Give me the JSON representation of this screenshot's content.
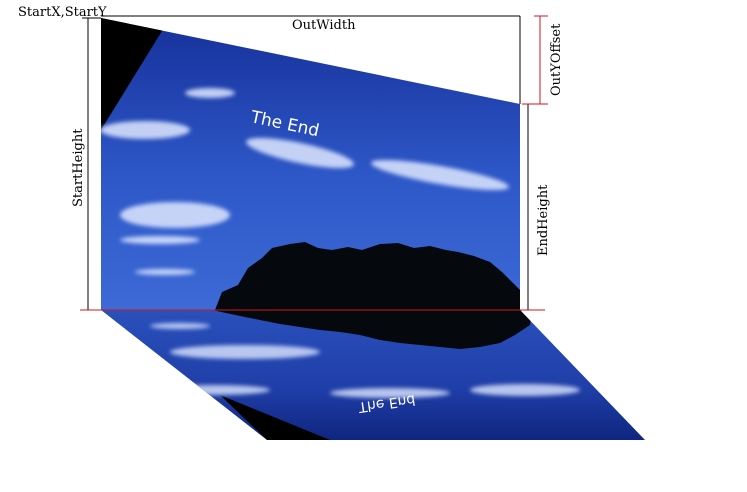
{
  "labels": {
    "start_xy": "StartX,StartY",
    "out_width": "OutWidth",
    "out_y_offset": "OutYOffset",
    "start_height": "StartHeight",
    "end_height": "EndHeight"
  },
  "image": {
    "overlay_text": "The End",
    "reflected_text": "The End"
  },
  "colors": {
    "outline_line": "#000000",
    "marker_line": "#cc1a1a",
    "sky_light": "#3a6ad8",
    "sky_dark": "#0a1f78",
    "tree": "#05080c"
  }
}
